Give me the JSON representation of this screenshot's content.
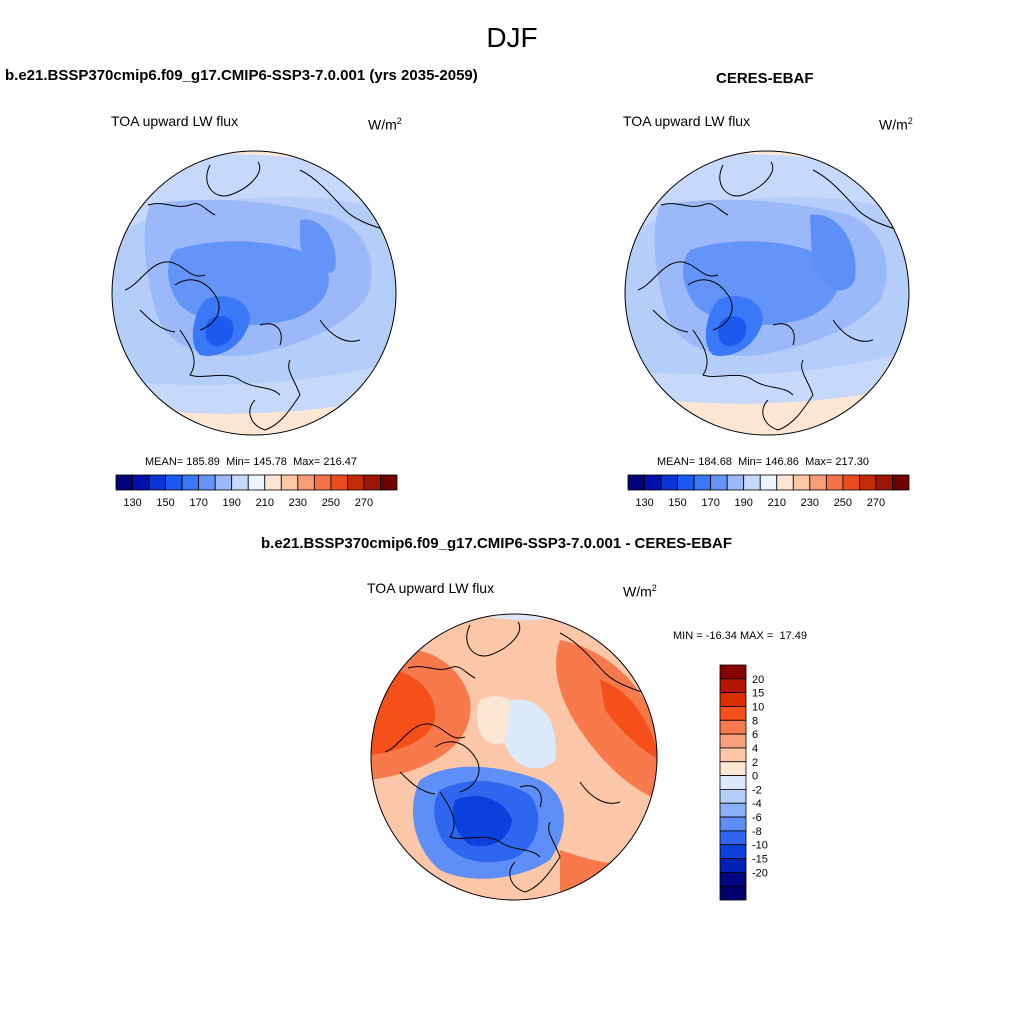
{
  "figure_title": "DJF",
  "panels": {
    "model": {
      "title": "b.e21.BSSP370cmip6.f09_g17.CMIP6-SSP3-7.0.001 (yrs 2035-2059)",
      "variable": "TOA upward LW flux",
      "units_base": "W/m",
      "units_exp": "2",
      "mean_label": "MEAN=",
      "mean": "185.89",
      "min_label": "Min=",
      "min": "145.78",
      "max_label": "Max=",
      "max": "216.47"
    },
    "obs": {
      "title": "CERES-EBAF",
      "variable": "TOA upward LW flux",
      "units_base": "W/m",
      "units_exp": "2",
      "mean_label": "MEAN=",
      "mean": "184.68",
      "min_label": "Min=",
      "min": "146.86",
      "max_label": "Max=",
      "max": "217.30"
    },
    "diff": {
      "title": "b.e21.BSSP370cmip6.f09_g17.CMIP6-SSP3-7.0.001 - CERES-EBAF",
      "variable": "TOA upward LW flux",
      "units_base": "W/m",
      "units_exp": "2",
      "min_label": "MIN =",
      "min": "-16.34",
      "max_label": "MAX =",
      "max": "17.49"
    }
  },
  "colorbar_abs": {
    "tick_labels": [
      "130",
      "150",
      "170",
      "190",
      "210",
      "230",
      "250",
      "270"
    ],
    "colors": [
      "#00007a",
      "#0010b0",
      "#0a36d6",
      "#1c5af0",
      "#3a78f7",
      "#6594f8",
      "#9bb8f8",
      "#c6d9fa",
      "#eef4fc",
      "#fde7d4",
      "#fcc8a8",
      "#f99d78",
      "#f67348",
      "#ea4a1c",
      "#c52c06",
      "#9c1702",
      "#6f0000"
    ]
  },
  "colorbar_diff": {
    "tick_labels": [
      "20",
      "15",
      "10",
      "8",
      "6",
      "4",
      "2",
      "0",
      "-2",
      "-4",
      "-6",
      "-8",
      "-10",
      "-15",
      "-20"
    ],
    "colors": [
      "#8a0000",
      "#b51400",
      "#dc2e00",
      "#f5501a",
      "#f87a4c",
      "#faa07c",
      "#fcc6a8",
      "#fce6d4",
      "#dce9fb",
      "#b5cdf9",
      "#8ab0f8",
      "#5e8ef7",
      "#2f66ef",
      "#0b40dc",
      "#0020b4",
      "#000880",
      "#00006a"
    ]
  }
}
